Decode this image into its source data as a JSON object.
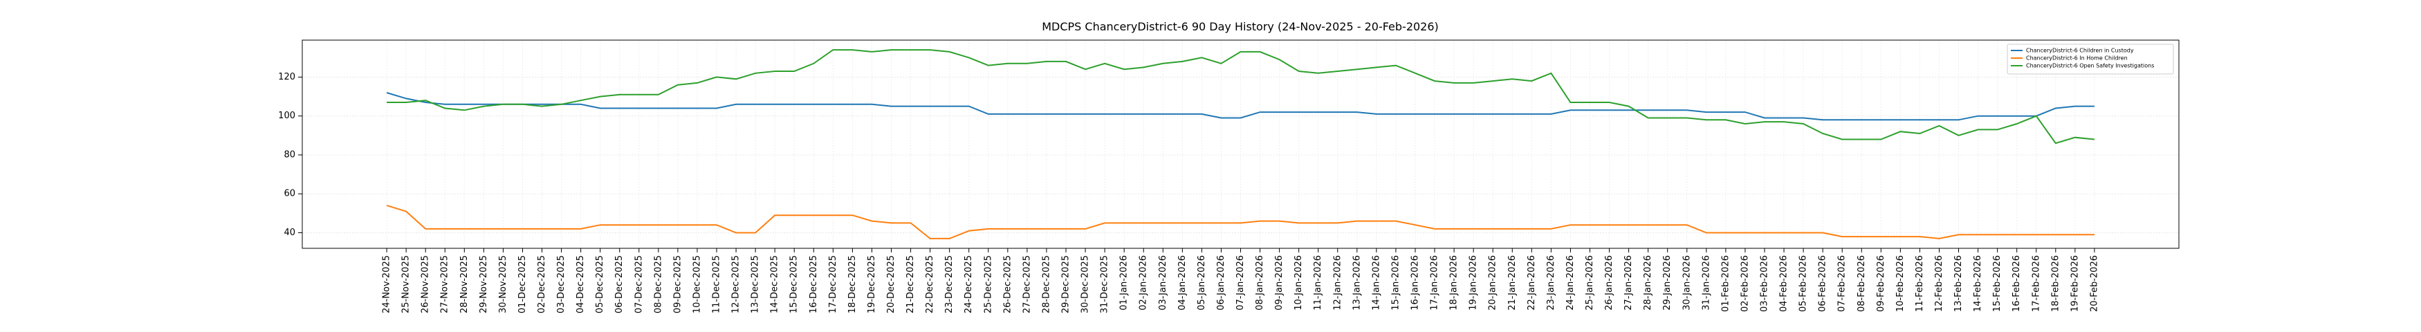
{
  "chart_data": {
    "type": "line",
    "title": "MDCPS ChanceryDistrict-6 90 Day History (24-Nov-2025 - 20-Feb-2026)",
    "categories": [
      "24-Nov-2025",
      "25-Nov-2025",
      "26-Nov-2025",
      "27-Nov-2025",
      "28-Nov-2025",
      "29-Nov-2025",
      "30-Nov-2025",
      "01-Dec-2025",
      "02-Dec-2025",
      "03-Dec-2025",
      "04-Dec-2025",
      "05-Dec-2025",
      "06-Dec-2025",
      "07-Dec-2025",
      "08-Dec-2025",
      "09-Dec-2025",
      "10-Dec-2025",
      "11-Dec-2025",
      "12-Dec-2025",
      "13-Dec-2025",
      "14-Dec-2025",
      "15-Dec-2025",
      "16-Dec-2025",
      "17-Dec-2025",
      "18-Dec-2025",
      "19-Dec-2025",
      "20-Dec-2025",
      "21-Dec-2025",
      "22-Dec-2025",
      "23-Dec-2025",
      "24-Dec-2025",
      "25-Dec-2025",
      "26-Dec-2025",
      "27-Dec-2025",
      "28-Dec-2025",
      "29-Dec-2025",
      "30-Dec-2025",
      "31-Dec-2025",
      "01-Jan-2026",
      "02-Jan-2026",
      "03-Jan-2026",
      "04-Jan-2026",
      "05-Jan-2026",
      "06-Jan-2026",
      "07-Jan-2026",
      "08-Jan-2026",
      "09-Jan-2026",
      "10-Jan-2026",
      "11-Jan-2026",
      "12-Jan-2026",
      "13-Jan-2026",
      "14-Jan-2026",
      "15-Jan-2026",
      "16-Jan-2026",
      "17-Jan-2026",
      "18-Jan-2026",
      "19-Jan-2026",
      "20-Jan-2026",
      "21-Jan-2026",
      "22-Jan-2026",
      "23-Jan-2026",
      "24-Jan-2026",
      "25-Jan-2026",
      "26-Jan-2026",
      "27-Jan-2026",
      "28-Jan-2026",
      "29-Jan-2026",
      "30-Jan-2026",
      "31-Jan-2026",
      "01-Feb-2026",
      "02-Feb-2026",
      "03-Feb-2026",
      "04-Feb-2026",
      "05-Feb-2026",
      "06-Feb-2026",
      "07-Feb-2026",
      "08-Feb-2026",
      "09-Feb-2026",
      "10-Feb-2026",
      "11-Feb-2026",
      "12-Feb-2026",
      "13-Feb-2026",
      "14-Feb-2026",
      "15-Feb-2026",
      "16-Feb-2026",
      "17-Feb-2026",
      "18-Feb-2026",
      "19-Feb-2026",
      "20-Feb-2026"
    ],
    "series": [
      {
        "name": "ChanceryDistrict-6 Children in Custody",
        "color": "#1f77b4",
        "values": [
          112,
          109,
          107,
          106,
          106,
          106,
          106,
          106,
          106,
          106,
          106,
          104,
          104,
          104,
          104,
          104,
          104,
          104,
          106,
          106,
          106,
          106,
          106,
          106,
          106,
          106,
          105,
          105,
          105,
          105,
          105,
          101,
          101,
          101,
          101,
          101,
          101,
          101,
          101,
          101,
          101,
          101,
          101,
          99,
          99,
          102,
          102,
          102,
          102,
          102,
          102,
          101,
          101,
          101,
          101,
          101,
          101,
          101,
          101,
          101,
          101,
          103,
          103,
          103,
          103,
          103,
          103,
          103,
          102,
          102,
          102,
          99,
          99,
          99,
          98,
          98,
          98,
          98,
          98,
          98,
          98,
          98,
          100,
          100,
          100,
          100,
          104,
          105,
          105
        ]
      },
      {
        "name": "ChanceryDistrict-6 In Home Children",
        "color": "#ff7f0e",
        "values": [
          54,
          51,
          42,
          42,
          42,
          42,
          42,
          42,
          42,
          42,
          42,
          44,
          44,
          44,
          44,
          44,
          44,
          44,
          40,
          40,
          49,
          49,
          49,
          49,
          49,
          46,
          45,
          45,
          37,
          37,
          41,
          42,
          42,
          42,
          42,
          42,
          42,
          45,
          45,
          45,
          45,
          45,
          45,
          45,
          45,
          46,
          46,
          45,
          45,
          45,
          46,
          46,
          46,
          44,
          42,
          42,
          42,
          42,
          42,
          42,
          42,
          44,
          44,
          44,
          44,
          44,
          44,
          44,
          40,
          40,
          40,
          40,
          40,
          40,
          40,
          38,
          38,
          38,
          38,
          38,
          37,
          39,
          39,
          39,
          39,
          39,
          39,
          39,
          39
        ]
      },
      {
        "name": "ChanceryDistrict-6 Open Safety Investigations",
        "color": "#2ca02c",
        "values": [
          107,
          107,
          108,
          104,
          103,
          105,
          106,
          106,
          105,
          106,
          108,
          110,
          111,
          111,
          111,
          116,
          117,
          120,
          119,
          122,
          123,
          123,
          127,
          134,
          134,
          133,
          134,
          134,
          134,
          133,
          130,
          126,
          127,
          127,
          128,
          128,
          124,
          127,
          124,
          125,
          127,
          128,
          130,
          127,
          133,
          133,
          129,
          123,
          122,
          123,
          124,
          125,
          126,
          122,
          118,
          117,
          117,
          118,
          119,
          118,
          122,
          107,
          107,
          107,
          105,
          99,
          99,
          99,
          98,
          98,
          96,
          97,
          97,
          96,
          91,
          88,
          88,
          88,
          92,
          91,
          95,
          90,
          93,
          93,
          96,
          100,
          86,
          89,
          88
        ]
      }
    ],
    "ylim": [
      32,
      139
    ],
    "yticks": [
      40,
      60,
      80,
      100,
      120
    ],
    "grid": true,
    "legend": "upper right"
  }
}
